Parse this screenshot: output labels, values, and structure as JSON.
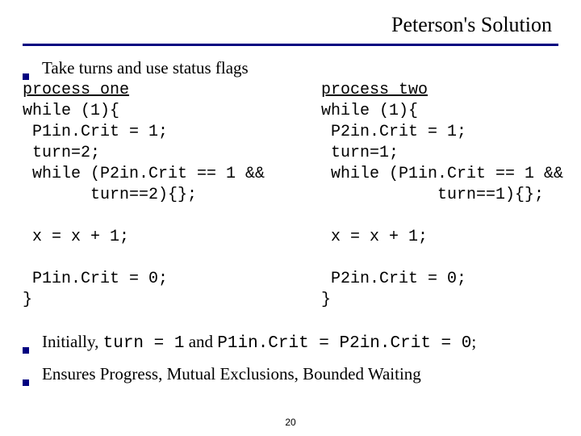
{
  "title": "Peterson's Solution",
  "intro_bullet": "Take turns and use status flags",
  "process_one": {
    "header": "process one",
    "lines": [
      "while (1){",
      " P1in.Crit = 1;",
      " turn=2;",
      " while (P2in.Crit == 1 &&",
      "       turn==2){};",
      "",
      " x = x + 1;",
      "",
      " P1in.Crit = 0;",
      "}"
    ]
  },
  "process_two": {
    "header": "process two",
    "lines": [
      "while (1){",
      " P2in.Crit = 1;",
      " turn=1;",
      " while (P1in.Crit == 1 &&",
      "            turn==1){};",
      "",
      " x = x + 1;",
      "",
      " P2in.Crit = 0;",
      "}"
    ]
  },
  "note1_parts": {
    "a": "Initially, ",
    "b": "turn = 1",
    "c": " and ",
    "d": "P1in.Crit = P2in.Crit = 0",
    "e": ";"
  },
  "note2": "Ensures Progress, Mutual Exclusions, Bounded Waiting",
  "page_number": "20",
  "colors": {
    "accent": "#000080",
    "text": "#000000",
    "background": "#ffffff"
  }
}
